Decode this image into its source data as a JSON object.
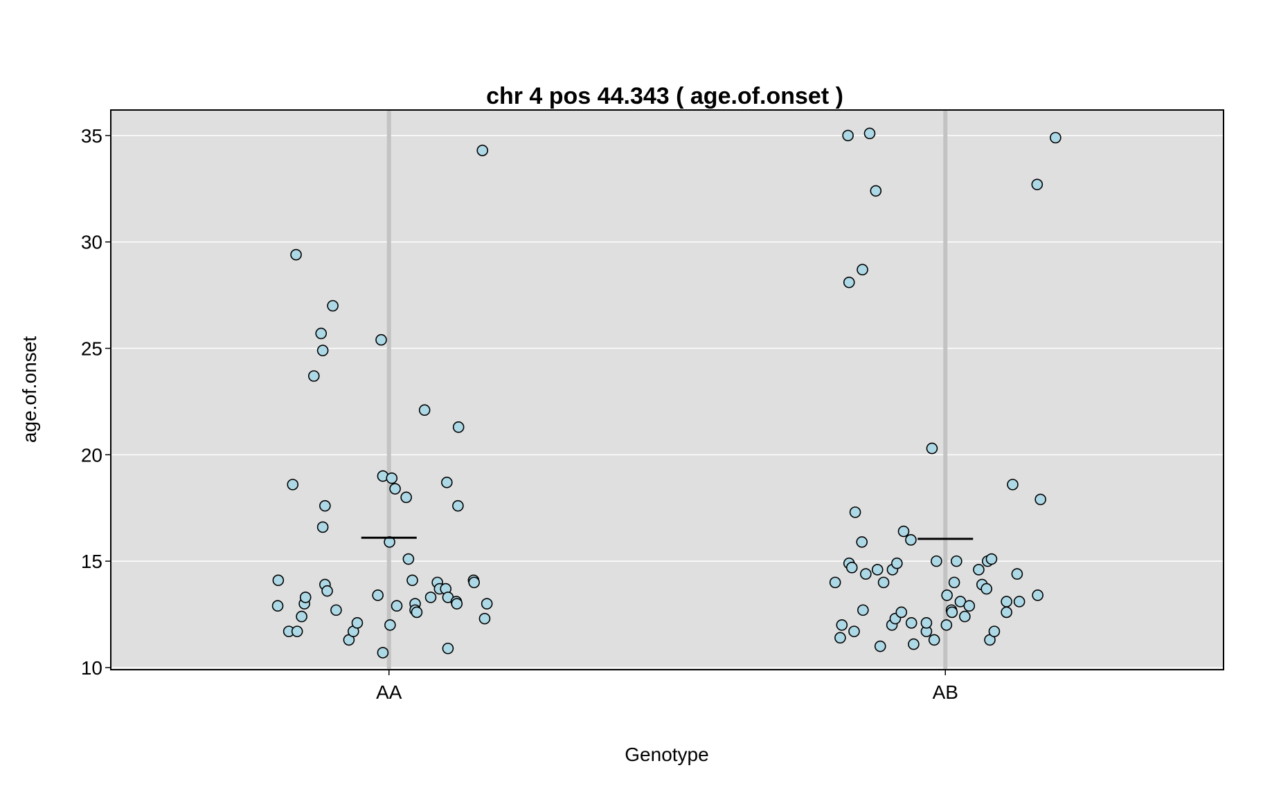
{
  "chart_data": {
    "type": "scatter",
    "title": "chr 4 pos 44.343 ( age.of.onset )",
    "xlabel": "Genotype",
    "ylabel": "age.of.onset",
    "categories": [
      "AA",
      "AB"
    ],
    "ylim": [
      9.9,
      36.2
    ],
    "yticks": [
      10,
      15,
      20,
      25,
      30,
      35
    ],
    "grid": true,
    "colors": {
      "panel": "#dfdfdf",
      "grid": "#ffffff",
      "category_line": "#c3c3c3",
      "point_fill": "#add8e6",
      "point_edge": "#000000",
      "mean_line": "#000000"
    },
    "series": [
      {
        "category": "AA",
        "mean": 16.1,
        "points": [
          {
            "jitter": -0.199,
            "y": 14.1
          },
          {
            "jitter": -0.2,
            "y": 12.9
          },
          {
            "jitter": -0.18,
            "y": 11.7
          },
          {
            "jitter": -0.173,
            "y": 18.6
          },
          {
            "jitter": -0.167,
            "y": 29.4
          },
          {
            "jitter": -0.165,
            "y": 11.7
          },
          {
            "jitter": -0.157,
            "y": 12.4
          },
          {
            "jitter": -0.152,
            "y": 13.0
          },
          {
            "jitter": -0.15,
            "y": 13.3
          },
          {
            "jitter": -0.135,
            "y": 23.7
          },
          {
            "jitter": -0.122,
            "y": 25.7
          },
          {
            "jitter": -0.119,
            "y": 24.9
          },
          {
            "jitter": -0.119,
            "y": 16.6
          },
          {
            "jitter": -0.115,
            "y": 17.6
          },
          {
            "jitter": -0.115,
            "y": 13.9
          },
          {
            "jitter": -0.111,
            "y": 13.6
          },
          {
            "jitter": -0.101,
            "y": 27.0
          },
          {
            "jitter": -0.095,
            "y": 12.7
          },
          {
            "jitter": -0.072,
            "y": 11.3
          },
          {
            "jitter": -0.064,
            "y": 11.7
          },
          {
            "jitter": -0.057,
            "y": 12.1
          },
          {
            "jitter": -0.02,
            "y": 13.4
          },
          {
            "jitter": -0.014,
            "y": 25.4
          },
          {
            "jitter": -0.011,
            "y": 10.7
          },
          {
            "jitter": -0.011,
            "y": 19.0
          },
          {
            "jitter": 0.001,
            "y": 15.9
          },
          {
            "jitter": 0.002,
            "y": 12.0
          },
          {
            "jitter": 0.005,
            "y": 18.9
          },
          {
            "jitter": 0.011,
            "y": 18.4
          },
          {
            "jitter": 0.014,
            "y": 12.9
          },
          {
            "jitter": 0.031,
            "y": 18.0
          },
          {
            "jitter": 0.035,
            "y": 15.1
          },
          {
            "jitter": 0.042,
            "y": 14.1
          },
          {
            "jitter": 0.047,
            "y": 13.0
          },
          {
            "jitter": 0.047,
            "y": 12.7
          },
          {
            "jitter": 0.05,
            "y": 12.6
          },
          {
            "jitter": 0.064,
            "y": 22.1
          },
          {
            "jitter": 0.075,
            "y": 13.3
          },
          {
            "jitter": 0.087,
            "y": 14.0
          },
          {
            "jitter": 0.091,
            "y": 13.7
          },
          {
            "jitter": 0.102,
            "y": 13.7
          },
          {
            "jitter": 0.104,
            "y": 18.7
          },
          {
            "jitter": 0.106,
            "y": 13.3
          },
          {
            "jitter": 0.106,
            "y": 10.9
          },
          {
            "jitter": 0.121,
            "y": 13.1
          },
          {
            "jitter": 0.122,
            "y": 13.0
          },
          {
            "jitter": 0.124,
            "y": 17.6
          },
          {
            "jitter": 0.125,
            "y": 21.3
          },
          {
            "jitter": 0.152,
            "y": 14.1
          },
          {
            "jitter": 0.153,
            "y": 14.0
          },
          {
            "jitter": 0.168,
            "y": 34.3
          },
          {
            "jitter": 0.172,
            "y": 12.3
          },
          {
            "jitter": 0.176,
            "y": 13.0
          }
        ]
      },
      {
        "category": "AB",
        "mean": 16.05,
        "points": [
          {
            "jitter": -0.198,
            "y": 14.0
          },
          {
            "jitter": -0.189,
            "y": 11.4
          },
          {
            "jitter": -0.186,
            "y": 12.0
          },
          {
            "jitter": -0.175,
            "y": 35.0
          },
          {
            "jitter": -0.173,
            "y": 28.1
          },
          {
            "jitter": -0.173,
            "y": 14.9
          },
          {
            "jitter": -0.168,
            "y": 14.7
          },
          {
            "jitter": -0.164,
            "y": 11.7
          },
          {
            "jitter": -0.162,
            "y": 17.3
          },
          {
            "jitter": -0.15,
            "y": 15.9
          },
          {
            "jitter": -0.149,
            "y": 28.7
          },
          {
            "jitter": -0.148,
            "y": 12.7
          },
          {
            "jitter": -0.143,
            "y": 14.4
          },
          {
            "jitter": -0.136,
            "y": 35.1
          },
          {
            "jitter": -0.125,
            "y": 32.4
          },
          {
            "jitter": -0.122,
            "y": 14.6
          },
          {
            "jitter": -0.117,
            "y": 11.0
          },
          {
            "jitter": -0.111,
            "y": 14.0
          },
          {
            "jitter": -0.096,
            "y": 12.0
          },
          {
            "jitter": -0.095,
            "y": 14.6
          },
          {
            "jitter": -0.09,
            "y": 12.3
          },
          {
            "jitter": -0.087,
            "y": 14.9
          },
          {
            "jitter": -0.079,
            "y": 12.6
          },
          {
            "jitter": -0.075,
            "y": 16.4
          },
          {
            "jitter": -0.062,
            "y": 16.0
          },
          {
            "jitter": -0.061,
            "y": 12.1
          },
          {
            "jitter": -0.057,
            "y": 11.1
          },
          {
            "jitter": -0.034,
            "y": 11.7
          },
          {
            "jitter": -0.034,
            "y": 12.1
          },
          {
            "jitter": -0.024,
            "y": 20.3
          },
          {
            "jitter": -0.02,
            "y": 11.3
          },
          {
            "jitter": -0.016,
            "y": 15.0
          },
          {
            "jitter": 0.002,
            "y": 12.0
          },
          {
            "jitter": 0.003,
            "y": 13.4
          },
          {
            "jitter": 0.011,
            "y": 12.7
          },
          {
            "jitter": 0.012,
            "y": 12.6
          },
          {
            "jitter": 0.016,
            "y": 14.0
          },
          {
            "jitter": 0.02,
            "y": 15.0
          },
          {
            "jitter": 0.027,
            "y": 13.1
          },
          {
            "jitter": 0.035,
            "y": 12.4
          },
          {
            "jitter": 0.043,
            "y": 12.9
          },
          {
            "jitter": 0.06,
            "y": 14.6
          },
          {
            "jitter": 0.066,
            "y": 13.9
          },
          {
            "jitter": 0.074,
            "y": 13.7
          },
          {
            "jitter": 0.076,
            "y": 15.0
          },
          {
            "jitter": 0.08,
            "y": 11.3
          },
          {
            "jitter": 0.083,
            "y": 15.1
          },
          {
            "jitter": 0.088,
            "y": 11.7
          },
          {
            "jitter": 0.11,
            "y": 12.6
          },
          {
            "jitter": 0.11,
            "y": 13.1
          },
          {
            "jitter": 0.121,
            "y": 18.6
          },
          {
            "jitter": 0.129,
            "y": 14.4
          },
          {
            "jitter": 0.133,
            "y": 13.1
          },
          {
            "jitter": 0.165,
            "y": 32.7
          },
          {
            "jitter": 0.166,
            "y": 13.4
          },
          {
            "jitter": 0.171,
            "y": 17.9
          },
          {
            "jitter": 0.198,
            "y": 34.9
          }
        ]
      }
    ]
  }
}
